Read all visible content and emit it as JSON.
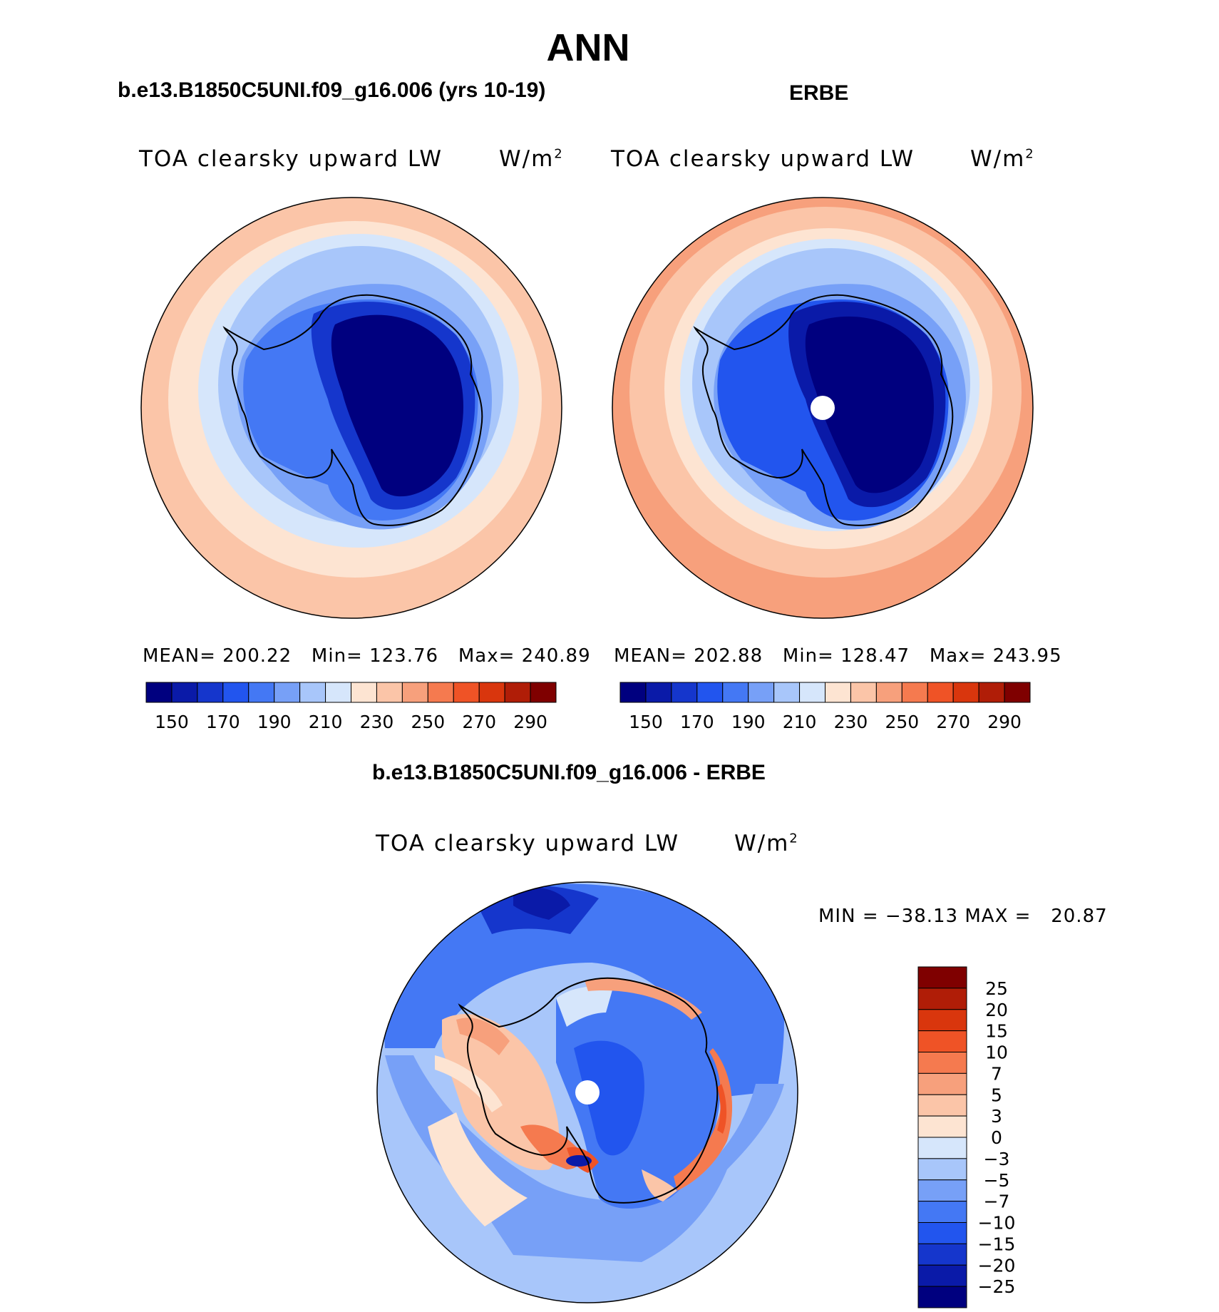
{
  "page_title": "ANN",
  "panels": [
    {
      "heading": "b.e13.B1850C5UNI.f09_g16.006 (yrs 10-19)",
      "variable": "TOA clearsky upward LW",
      "units": "W/m",
      "units_sup": "2",
      "stats": "MEAN= 200.22   Min= 123.76   Max= 240.89"
    },
    {
      "heading": "ERBE",
      "variable": "TOA clearsky upward LW",
      "units": "W/m",
      "units_sup": "2",
      "stats": "MEAN= 202.88   Min= 128.47   Max= 243.95"
    }
  ],
  "diff_panel": {
    "heading": "b.e13.B1850C5UNI.f09_g16.006 - ERBE",
    "variable": "TOA clearsky upward LW",
    "units": "W/m",
    "units_sup": "2",
    "minmax": "MIN = −38.13 MAX =   20.87"
  },
  "colorbar_main": {
    "colors": [
      "#00007f",
      "#0a1aa8",
      "#1536cc",
      "#2255ee",
      "#4478f4",
      "#77a0f7",
      "#a8c6fa",
      "#d6e6fb",
      "#fde4d2",
      "#fbc5a8",
      "#f7a07c",
      "#f57a4f",
      "#ef5326",
      "#d9360d",
      "#b01d07",
      "#7f0000"
    ],
    "ticks": [
      "150",
      "170",
      "190",
      "210",
      "230",
      "250",
      "270",
      "290"
    ]
  },
  "colorbar_diff": {
    "colors": [
      "#7f0000",
      "#b01d07",
      "#d9360d",
      "#ef5326",
      "#f57a4f",
      "#f7a07c",
      "#fbc5a8",
      "#fde4d2",
      "#d6e6fb",
      "#a8c6fa",
      "#77a0f7",
      "#4478f4",
      "#2255ee",
      "#1536cc",
      "#0a1aa8",
      "#00007f"
    ],
    "ticks": [
      "25",
      "20",
      "15",
      "10",
      "7",
      "5",
      "3",
      "0",
      "−3",
      "−5",
      "−7",
      "−10",
      "−15",
      "−20",
      "−25"
    ]
  }
}
